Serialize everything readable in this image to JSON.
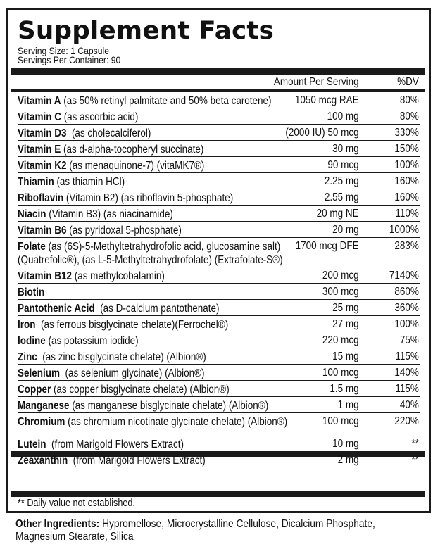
{
  "title": "Supplement Facts",
  "serving_size": "Serving Size: 1 Capsule",
  "servings_per_container": "Servings Per Container: 90",
  "header": {
    "amount": "Amount Per Serving",
    "dv": "%DV"
  },
  "nutrients": [
    {
      "name": "Vitamin A",
      "desc": " (as 50% retinyl palmitate and 50% beta carotene)",
      "amount": "1050 mcg RAE",
      "dv": "80%"
    },
    {
      "name": "Vitamin C",
      "desc": " (as ascorbic acid)",
      "amount": "100 mg",
      "dv": "80%"
    },
    {
      "name": "Vitamin D3",
      "desc": "  (as cholecalciferol)",
      "amount": "(2000 IU) 50 mcg",
      "dv": "330%"
    },
    {
      "name": "Vitamin E",
      "desc": " (as d-alpha-tocopheryl succinate)",
      "amount": "30 mg",
      "dv": "150%"
    },
    {
      "name": "Vitamin K2",
      "desc": " (as menaquinone-7) (vitaMK7®)",
      "amount": "90 mcg",
      "dv": "100%"
    },
    {
      "name": "Thiamin",
      "desc": " (as thiamin HCl)",
      "amount": "2.25 mg",
      "dv": "160%"
    },
    {
      "name": "Riboflavin",
      "desc": " (Vitamin B2) (as riboflavin 5-phosphate)",
      "amount": "2.55 mg",
      "dv": "160%"
    },
    {
      "name": "Niacin",
      "desc": " (Vitamin B3) (as niacinamide)",
      "amount": "20 mg NE",
      "dv": "110%"
    },
    {
      "name": "Vitamin B6",
      "desc": " (as pyridoxal 5-phosphate)",
      "amount": "20 mg",
      "dv": "1000%"
    },
    {
      "name": "Folate",
      "desc": " (as (6S)-5-Methyltetrahydrofolic acid, glucosamine salt)(Quatrefolic®), (as L-5-Methyltetrahydrofolate) (Extrafolate-S®)",
      "amount": "1700 mcg DFE",
      "dv": "283%",
      "wrap": true
    },
    {
      "name": "Vitamin B12",
      "desc": " (as methylcobalamin)",
      "amount": "200 mcg",
      "dv": "7140%"
    },
    {
      "name": "Biotin",
      "desc": "",
      "amount": "300 mcg",
      "dv": "860%"
    },
    {
      "name": "Pantothenic Acid",
      "desc": "  (as D-calcium pantothenate)",
      "amount": "25 mg",
      "dv": "360%"
    },
    {
      "name": "Iron",
      "desc": "  (as ferrous bisglycinate chelate)(Ferrochel®)",
      "amount": "27 mg",
      "dv": "100%"
    },
    {
      "name": "Iodine",
      "desc": " (as potassium iodide)",
      "amount": "220 mcg",
      "dv": "75%"
    },
    {
      "name": "Zinc",
      "desc": "  (as zinc bisglycinate chelate) (Albion®)",
      "amount": "15 mg",
      "dv": "115%"
    },
    {
      "name": "Selenium",
      "desc": "  (as selenium glycinate) (Albion®)",
      "amount": "100 mcg",
      "dv": "140%"
    },
    {
      "name": "Copper",
      "desc": " (as copper bisglycinate chelate) (Albion®)",
      "amount": "1.5 mg",
      "dv": "115%"
    },
    {
      "name": "Manganese",
      "desc": " (as manganese bisglycinate chelate) (Albion®)",
      "amount": "1 mg",
      "dv": "40%"
    },
    {
      "name": "Chromium",
      "desc": " (as chromium nicotinate glycinate chelate) (Albion®)",
      "amount": "100 mcg",
      "dv": "220%"
    }
  ],
  "other_nutrients": [
    {
      "name": "Lutein",
      "desc": "  (from Marigold Flowers Extract)",
      "amount": "10 mg",
      "dv": "**"
    },
    {
      "name": "Zeaxanthin",
      "desc": "  (from Marigold Flowers Extract)",
      "amount": "2 mg",
      "dv": "**"
    }
  ],
  "footnote": "** Daily value not established.",
  "other_ingredients": {
    "label": "Other Ingredients:",
    "text": " Hypromellose, Microcrystalline Cellulose, Dicalcium Phosphate, Magnesium Stearate, Silica"
  }
}
